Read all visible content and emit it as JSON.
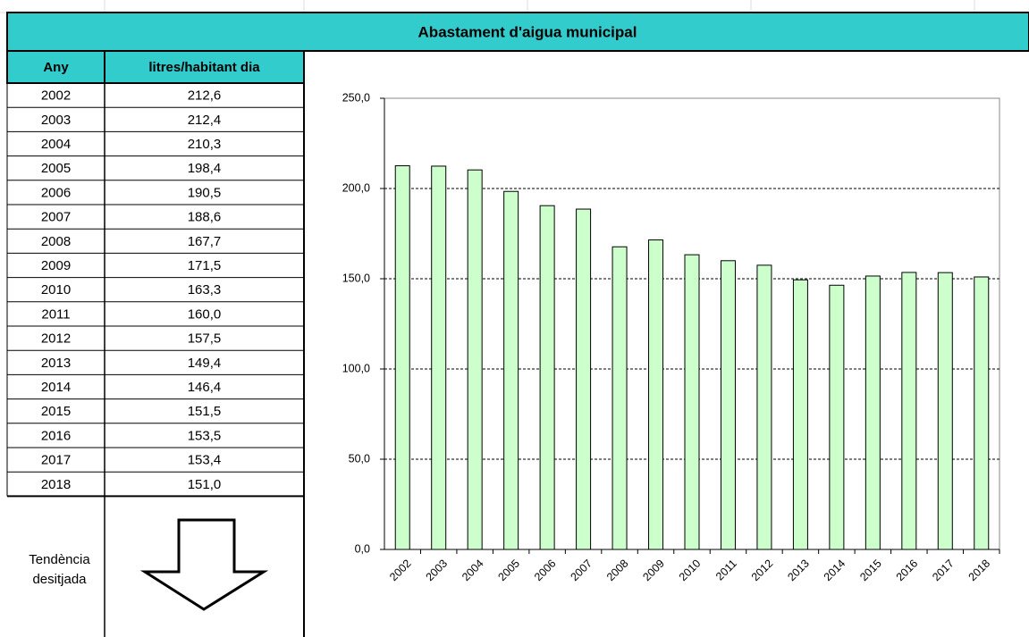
{
  "title": "Abastament d'aigua municipal",
  "table": {
    "headers": [
      "Any",
      "litres/habitant dia"
    ],
    "rows": [
      [
        "2002",
        "212,6"
      ],
      [
        "2003",
        "212,4"
      ],
      [
        "2004",
        "210,3"
      ],
      [
        "2005",
        "198,4"
      ],
      [
        "2006",
        "190,5"
      ],
      [
        "2007",
        "188,6"
      ],
      [
        "2008",
        "167,7"
      ],
      [
        "2009",
        "171,5"
      ],
      [
        "2010",
        "163,3"
      ],
      [
        "2011",
        "160,0"
      ],
      [
        "2012",
        "157,5"
      ],
      [
        "2013",
        "149,4"
      ],
      [
        "2014",
        "146,4"
      ],
      [
        "2015",
        "151,5"
      ],
      [
        "2016",
        "153,5"
      ],
      [
        "2017",
        "153,4"
      ],
      [
        "2018",
        "151,0"
      ]
    ],
    "footer_label": "Tendència desitjada"
  },
  "chart_data": {
    "type": "bar",
    "categories": [
      "2002",
      "2003",
      "2004",
      "2005",
      "2006",
      "2007",
      "2008",
      "2009",
      "2010",
      "2011",
      "2012",
      "2013",
      "2014",
      "2015",
      "2016",
      "2017",
      "2018"
    ],
    "values": [
      212.6,
      212.4,
      210.3,
      198.4,
      190.5,
      188.6,
      167.7,
      171.5,
      163.3,
      160.0,
      157.5,
      149.4,
      146.4,
      151.5,
      153.5,
      153.4,
      151.0
    ],
    "color": "#ccffcc",
    "ylim": [
      0,
      250
    ],
    "yticks": [
      {
        "value": 0,
        "label": "0,0"
      },
      {
        "value": 50,
        "label": "50,0"
      },
      {
        "value": 100,
        "label": "100,0"
      },
      {
        "value": 150,
        "label": "150,0"
      },
      {
        "value": 200,
        "label": "200,0"
      },
      {
        "value": 250,
        "label": "250,0"
      }
    ],
    "grid": true
  }
}
